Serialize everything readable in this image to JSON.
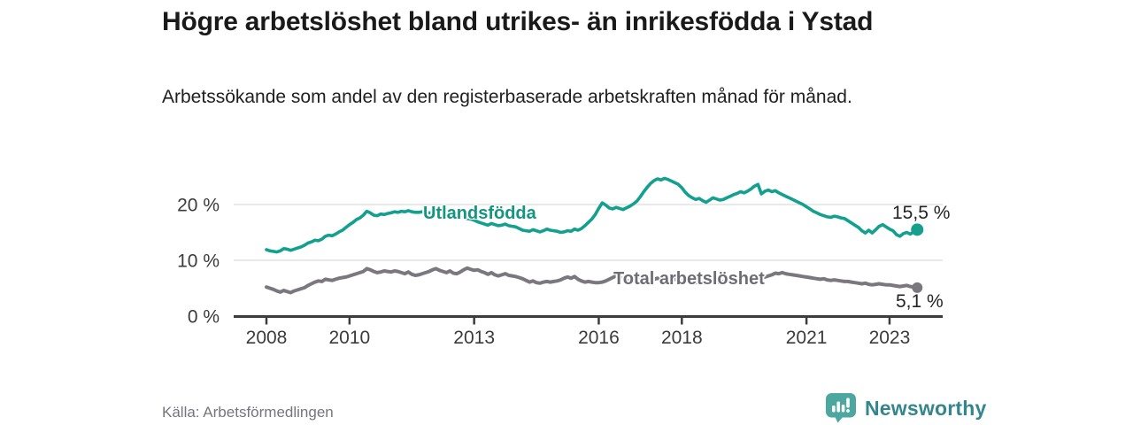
{
  "header": {
    "title": "Högre arbetslöshet bland utrikes- än inrikesfödda i Ystad",
    "subtitle": "Arbetssökande som andel av den registerbaserade arbetskraften månad för månad."
  },
  "chart_data": {
    "type": "line",
    "title": "Högre arbetslöshet bland utrikes- än inrikesfödda i Ystad",
    "unit": "%",
    "x_start_year": 2008,
    "x_frequency": "monthly",
    "x_end": "2023-09",
    "x_tick_years": [
      2008,
      2010,
      2013,
      2016,
      2018,
      2021,
      2023
    ],
    "x_tick_labels": [
      "2008",
      "2010",
      "2013",
      "2016",
      "2018",
      "2021",
      "2023"
    ],
    "y_ticks": [
      {
        "value": 0,
        "label": "0 %"
      },
      {
        "value": 10,
        "label": "10 %"
      },
      {
        "value": 20,
        "label": "20 %"
      }
    ],
    "ylim": [
      0,
      26
    ],
    "grid": "horizontal",
    "legend_position": "inline-labels",
    "colors": {
      "utlandsfodda": "#14A08E",
      "total": "#7A787E",
      "grid": "#dcdcdc",
      "axis": "#3c3c3c"
    },
    "series": [
      {
        "name": "Utlandsfödda",
        "color": "#14A08E",
        "end_label": "15,5 %",
        "last_value": 15.5,
        "values": [
          11.9,
          11.7,
          11.6,
          11.5,
          11.7,
          12.1,
          12.0,
          11.8,
          12.0,
          12.2,
          12.4,
          12.7,
          13.1,
          13.3,
          13.6,
          13.5,
          13.8,
          14.3,
          14.5,
          14.4,
          14.7,
          15.1,
          15.4,
          15.9,
          16.4,
          16.8,
          17.3,
          17.6,
          18.1,
          18.8,
          18.5,
          18.1,
          18.0,
          18.3,
          18.2,
          18.4,
          18.5,
          18.7,
          18.6,
          18.8,
          18.7,
          18.9,
          18.7,
          18.6,
          18.6,
          18.7,
          18.6,
          18.5,
          18.5,
          18.6,
          18.4,
          18.3,
          18.2,
          18.3,
          18.0,
          17.9,
          17.8,
          17.7,
          17.5,
          17.4,
          17.2,
          16.9,
          16.7,
          16.5,
          16.3,
          16.6,
          16.4,
          16.2,
          16.3,
          16.5,
          16.2,
          16.1,
          16.0,
          15.7,
          15.4,
          15.3,
          15.2,
          15.5,
          15.3,
          15.1,
          15.3,
          15.6,
          15.4,
          15.3,
          15.2,
          15.0,
          15.1,
          15.3,
          15.2,
          15.6,
          15.4,
          15.7,
          16.2,
          16.8,
          17.4,
          18.2,
          19.3,
          20.3,
          19.9,
          19.4,
          19.2,
          19.5,
          19.3,
          19.1,
          19.4,
          19.7,
          20.1,
          20.6,
          21.4,
          22.3,
          23.1,
          23.8,
          24.3,
          24.6,
          24.4,
          24.7,
          24.5,
          24.2,
          23.9,
          23.6,
          23.0,
          22.2,
          21.6,
          21.2,
          20.9,
          21.1,
          20.7,
          20.4,
          20.8,
          21.2,
          21.0,
          20.8,
          20.9,
          21.2,
          21.5,
          21.8,
          22.0,
          22.3,
          22.1,
          22.4,
          22.8,
          23.3,
          23.6,
          21.9,
          22.4,
          22.6,
          22.3,
          22.5,
          22.1,
          21.8,
          21.5,
          21.2,
          20.9,
          20.6,
          20.3,
          20.0,
          19.6,
          19.2,
          18.8,
          18.5,
          18.2,
          18.0,
          17.8,
          17.7,
          17.9,
          17.8,
          17.6,
          17.5,
          17.1,
          16.7,
          16.3,
          15.9,
          15.3,
          14.9,
          15.4,
          14.9,
          15.5,
          16.1,
          16.4,
          16.0,
          15.6,
          15.3,
          14.6,
          14.3,
          14.8,
          15.0,
          14.7,
          15.1,
          15.5
        ]
      },
      {
        "name": "Total arbetslöshet",
        "color": "#7A787E",
        "end_label": "5,1 %",
        "last_value": 5.1,
        "values": [
          5.2,
          5.0,
          4.8,
          4.5,
          4.3,
          4.6,
          4.4,
          4.2,
          4.5,
          4.7,
          4.9,
          5.1,
          5.5,
          5.8,
          6.1,
          6.3,
          6.2,
          6.6,
          6.5,
          6.4,
          6.6,
          6.8,
          6.9,
          7.0,
          7.2,
          7.4,
          7.6,
          7.8,
          8.0,
          8.5,
          8.3,
          8.0,
          7.8,
          7.9,
          8.1,
          8.0,
          7.9,
          8.1,
          8.0,
          7.8,
          7.6,
          7.9,
          7.5,
          7.3,
          7.4,
          7.6,
          7.8,
          8.0,
          8.3,
          8.5,
          8.2,
          8.0,
          7.8,
          8.1,
          7.7,
          7.6,
          7.9,
          8.3,
          8.6,
          8.4,
          8.2,
          8.3,
          8.0,
          7.8,
          7.5,
          7.8,
          7.4,
          7.2,
          7.4,
          7.6,
          7.3,
          7.2,
          7.1,
          6.9,
          6.7,
          6.4,
          6.1,
          6.3,
          6.0,
          5.9,
          6.1,
          6.2,
          6.1,
          6.2,
          6.3,
          6.5,
          6.8,
          7.0,
          6.8,
          7.1,
          6.6,
          6.3,
          6.1,
          6.2,
          6.1,
          6.0,
          6.0,
          6.1,
          6.3,
          6.6,
          6.9,
          7.2,
          7.0,
          6.7,
          6.4,
          6.3,
          6.4,
          6.5,
          6.4,
          6.6,
          6.5,
          6.7,
          6.6,
          6.8,
          6.5,
          6.4,
          6.6,
          6.7,
          6.6,
          6.5,
          6.4,
          6.3,
          6.2,
          6.1,
          6.0,
          6.2,
          6.0,
          5.9,
          6.1,
          6.2,
          6.1,
          6.0,
          6.2,
          6.3,
          6.2,
          6.4,
          6.3,
          6.5,
          6.4,
          6.3,
          6.5,
          6.6,
          6.7,
          6.8,
          7.0,
          7.2,
          7.4,
          7.7,
          7.6,
          7.8,
          7.6,
          7.5,
          7.4,
          7.3,
          7.2,
          7.1,
          7.0,
          6.9,
          6.8,
          6.7,
          6.6,
          6.7,
          6.5,
          6.4,
          6.5,
          6.4,
          6.3,
          6.2,
          6.2,
          6.1,
          6.0,
          5.9,
          5.8,
          5.9,
          5.7,
          5.6,
          5.7,
          5.8,
          5.7,
          5.6,
          5.6,
          5.5,
          5.4,
          5.3,
          5.4,
          5.5,
          5.3,
          5.2,
          5.1
        ]
      }
    ]
  },
  "footer": {
    "source": "Källa: Arbetsförmedlingen",
    "brand": "Newsworthy",
    "brand_color": "#35868C",
    "brand_icon": "speech-bubble-bar-chart",
    "brand_icon_color": "#4BA7A0"
  }
}
